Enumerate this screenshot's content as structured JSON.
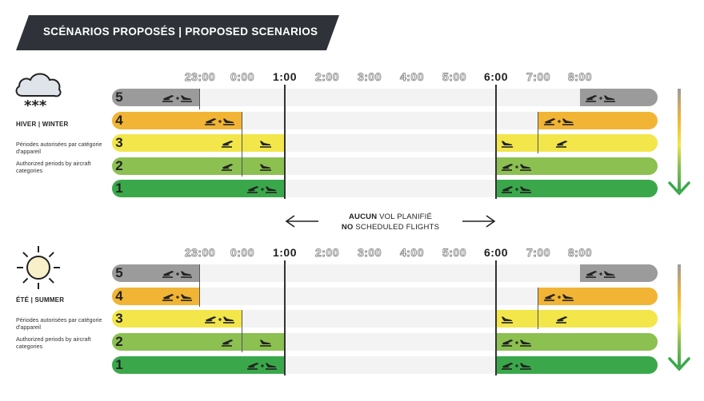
{
  "banner": {
    "title": "SCÉNARIOS PROPOSÉS | PROPOSED SCENARIOS"
  },
  "hours": [
    "23:00",
    "0:00",
    "1:00",
    "2:00",
    "3:00",
    "4:00",
    "5:00",
    "6:00",
    "7:00",
    "8:00"
  ],
  "hours_bold": [
    "1:00",
    "6:00"
  ],
  "no_flights": {
    "fr_bold": "AUCUN",
    "fr_rest": "VOL PLANIFIÉ",
    "en_bold": "NO",
    "en_rest": "SCHEDULED FLIGHTS"
  },
  "colors": {
    "level5": "#9b9b9b",
    "level4": "#f1b434",
    "level3": "#f2e64a",
    "level2": "#8cc051",
    "level1": "#3aa84a",
    "track": "#f3f3f3",
    "banner": "#2f3339"
  },
  "icons": {
    "departure": "takeoff-icon",
    "arrival": "landing-icon",
    "both": "takeoff-plus-landing-icon",
    "winter": "snow-cloud-icon",
    "summer": "sun-icon",
    "trend": "down-arrow-icon"
  },
  "sections": [
    {
      "season": "HIVER | WINTER",
      "note_fr": "Périodes autorisées par catégorie d'appareil",
      "note_en": "Authorized periods by aircraft categories",
      "rows": [
        {
          "level": "5",
          "night_end": "23:00",
          "morning_start": "8:00",
          "night_icons": [
            "both"
          ],
          "morning_icons": [
            "both"
          ]
        },
        {
          "level": "4",
          "night_end": "0:00",
          "morning_start": "7:00",
          "night_icons": [
            "both"
          ],
          "morning_icons": [
            "both"
          ]
        },
        {
          "level": "3",
          "night_end": "1:00",
          "morning_start": "6:00",
          "night_icons": [
            "departure",
            "arrival"
          ],
          "morning_icons": [
            "arrival",
            "departure"
          ]
        },
        {
          "level": "2",
          "night_end": "1:00",
          "morning_start": "6:00",
          "night_icons": [
            "departure",
            "arrival"
          ],
          "morning_icons": [
            "both"
          ]
        },
        {
          "level": "1",
          "night_end": "1:00",
          "morning_start": "6:00",
          "night_icons": [
            "both"
          ],
          "morning_icons": [
            "both"
          ]
        }
      ]
    },
    {
      "season": "ÉTÉ | SUMMER",
      "note_fr": "Périodes autorisées par catégorie d'appareil",
      "note_en": "Authorized periods by aircraft categories",
      "rows": [
        {
          "level": "5",
          "night_end": "23:00",
          "morning_start": "8:00",
          "night_icons": [
            "both"
          ],
          "morning_icons": [
            "both"
          ]
        },
        {
          "level": "4",
          "night_end": "23:00",
          "morning_start": "7:00",
          "night_icons": [
            "both"
          ],
          "morning_icons": [
            "both"
          ]
        },
        {
          "level": "3",
          "night_end": "0:00",
          "morning_start": "6:00",
          "night_icons": [
            "both"
          ],
          "morning_icons": [
            "arrival",
            "departure"
          ]
        },
        {
          "level": "2",
          "night_end": "1:00",
          "morning_start": "6:00",
          "night_icons": [
            "departure",
            "arrival"
          ],
          "morning_icons": [
            "both"
          ]
        },
        {
          "level": "1",
          "night_end": "1:00",
          "morning_start": "6:00",
          "night_icons": [
            "both"
          ],
          "morning_icons": [
            "both"
          ]
        }
      ]
    }
  ]
}
